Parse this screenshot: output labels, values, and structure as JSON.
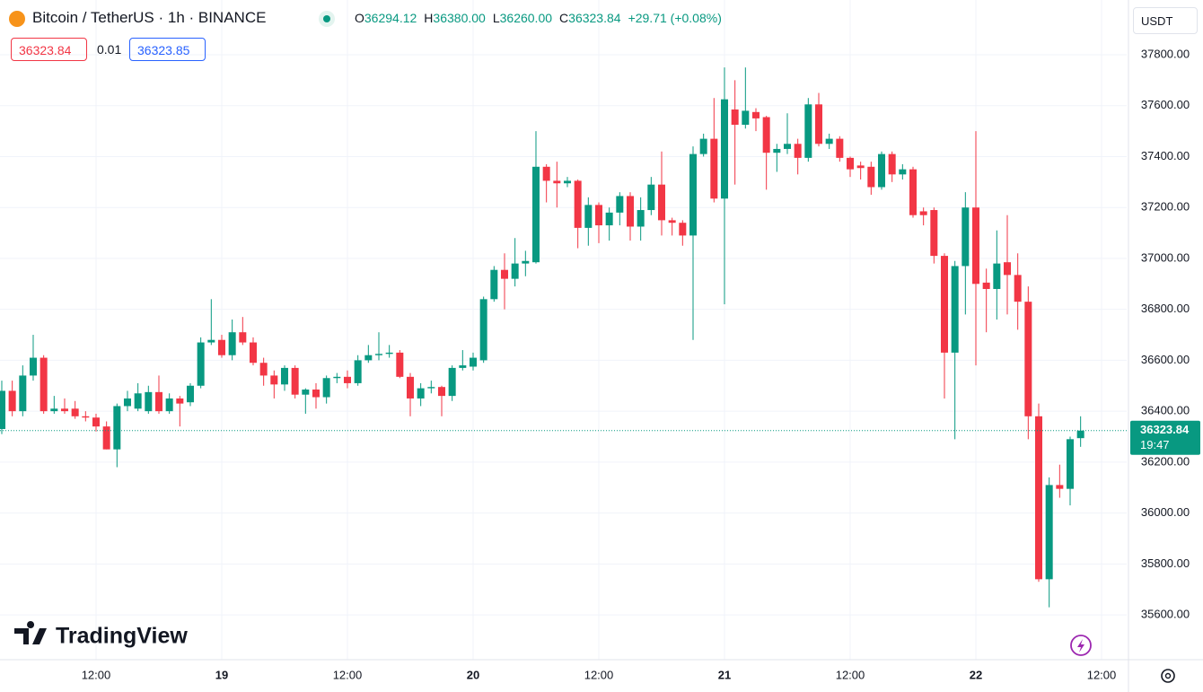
{
  "chart_data": {
    "type": "candlestick",
    "title": "Bitcoin / TetherUS · 1h · BINANCE",
    "readout": [
      {
        "key": "O",
        "value": "36294.12"
      },
      {
        "key": "H",
        "value": "36380.00"
      },
      {
        "key": "L",
        "value": "36260.00"
      },
      {
        "key": "C",
        "value": "36323.84"
      }
    ],
    "change": "+29.71 (+0.08%)",
    "bid": "36323.84",
    "spread": "0.01",
    "ask": "36323.85",
    "currency": "USDT",
    "last_price": 36323.84,
    "countdown": "19:47",
    "brand": "TradingView",
    "up_color": "#089981",
    "down_color": "#f23645",
    "grid": true,
    "ylim": [
      35424,
      38015
    ],
    "yticks": [
      {
        "value": 35600,
        "label": "35600.00"
      },
      {
        "value": 35800,
        "label": "35800.00"
      },
      {
        "value": 36000,
        "label": "36000.00"
      },
      {
        "value": 36200,
        "label": "36200.00"
      },
      {
        "value": 36400,
        "label": "36400.00"
      },
      {
        "value": 36600,
        "label": "36600.00"
      },
      {
        "value": 36800,
        "label": "36800.00"
      },
      {
        "value": 37000,
        "label": "37000.00"
      },
      {
        "value": 37200,
        "label": "37200.00"
      },
      {
        "value": 37400,
        "label": "37400.00"
      },
      {
        "value": 37600,
        "label": "37600.00"
      },
      {
        "value": 37800,
        "label": "37800.00"
      }
    ],
    "xlim": [
      -0.17,
      107.4
    ],
    "xticks": [
      {
        "value": 9,
        "label": "12:00"
      },
      {
        "value": 21,
        "label": "19"
      },
      {
        "value": 33,
        "label": "12:00"
      },
      {
        "value": 45,
        "label": "20"
      },
      {
        "value": 57,
        "label": "12:00"
      },
      {
        "value": 69,
        "label": "21"
      },
      {
        "value": 81,
        "label": "12:00"
      },
      {
        "value": 93,
        "label": "22"
      },
      {
        "value": 105,
        "label": "12:00"
      }
    ],
    "open": [
      36330,
      36480,
      36400,
      36540,
      36610,
      36400,
      36410,
      36410,
      36380,
      36375,
      36340,
      36250,
      36420,
      36410,
      36400,
      36475,
      36400,
      36450,
      36435,
      36500,
      36670,
      36680,
      36620,
      36710,
      36670,
      36590,
      36540,
      36505,
      36570,
      36465,
      36485,
      36455,
      36530,
      36535,
      36510,
      36600,
      36620,
      36625,
      36630,
      36535,
      36450,
      36490,
      36495,
      36460,
      36570,
      36575,
      36600,
      36840,
      36955,
      36920,
      36980,
      36985,
      37360,
      37305,
      37295,
      37305,
      37120,
      37210,
      37130,
      37180,
      37245,
      37125,
      37190,
      37290,
      37150,
      37140,
      37090,
      37410,
      37470,
      37235,
      37585,
      37525,
      37575,
      37555,
      37415,
      37430,
      37450,
      37395,
      37605,
      37450,
      37470,
      37395,
      37365,
      37360,
      37280,
      37410,
      37330,
      37350,
      37185,
      37190,
      37010,
      36630,
      36970,
      37200,
      36905,
      36880,
      36985,
      36935,
      36830,
      36380,
      35740,
      36110,
      36095,
      36294.12
    ],
    "high": [
      36520,
      36520,
      36580,
      36700,
      36620,
      36460,
      36450,
      36440,
      36400,
      36390,
      36360,
      36430,
      36480,
      36510,
      36500,
      36540,
      36470,
      36460,
      36510,
      36690,
      36840,
      36700,
      36760,
      36770,
      36690,
      36610,
      36560,
      36580,
      36580,
      36490,
      36510,
      36540,
      36550,
      36560,
      36620,
      36660,
      36710,
      36660,
      36640,
      36550,
      36510,
      36520,
      36500,
      36580,
      36640,
      36630,
      36850,
      36970,
      37020,
      37080,
      37030,
      37500,
      37370,
      37380,
      37320,
      37310,
      37240,
      37220,
      37200,
      37260,
      37260,
      37240,
      37320,
      37420,
      37160,
      37150,
      37440,
      37490,
      37630,
      37750,
      37700,
      37750,
      37590,
      37560,
      37450,
      37570,
      37470,
      37630,
      37650,
      37490,
      37480,
      37400,
      37380,
      37380,
      37420,
      37420,
      37370,
      37360,
      37200,
      37200,
      37020,
      36990,
      37260,
      37500,
      36960,
      37110,
      37170,
      37020,
      36890,
      36430,
      36140,
      36190,
      36300,
      36380
    ],
    "low": [
      36310,
      36380,
      36380,
      36520,
      36390,
      36390,
      36390,
      36370,
      36360,
      36320,
      36250,
      36180,
      36400,
      36400,
      36390,
      36390,
      36390,
      36340,
      36420,
      36490,
      36660,
      36610,
      36600,
      36660,
      36580,
      36500,
      36450,
      36480,
      36450,
      36390,
      36410,
      36430,
      36510,
      36490,
      36500,
      36590,
      36600,
      36610,
      36530,
      36380,
      36420,
      36470,
      36380,
      36440,
      36560,
      36560,
      36590,
      36830,
      36800,
      36890,
      36930,
      36980,
      37220,
      37200,
      37280,
      37040,
      37050,
      37060,
      37070,
      37130,
      37070,
      37070,
      37170,
      37090,
      37090,
      37050,
      36680,
      37400,
      37220,
      36820,
      37290,
      37510,
      37500,
      37270,
      37340,
      37410,
      37330,
      37380,
      37440,
      37430,
      37380,
      37320,
      37310,
      37250,
      37270,
      37300,
      37310,
      37160,
      37130,
      36980,
      36450,
      36290,
      36780,
      36580,
      36710,
      36760,
      36780,
      36720,
      36290,
      35730,
      35630,
      36060,
      36030,
      36260
    ],
    "close": [
      36480,
      36400,
      36540,
      36610,
      36400,
      36410,
      36400,
      36380,
      36375,
      36340,
      36250,
      36420,
      36450,
      36470,
      36475,
      36400,
      36450,
      36430,
      36500,
      36670,
      36680,
      36620,
      36710,
      36670,
      36590,
      36540,
      36505,
      36570,
      36465,
      36485,
      36455,
      36530,
      36535,
      36510,
      36600,
      36620,
      36625,
      36630,
      36535,
      36450,
      36490,
      36495,
      36460,
      36570,
      36580,
      36610,
      36840,
      36955,
      36920,
      36980,
      36990,
      37360,
      37305,
      37295,
      37305,
      37120,
      37210,
      37130,
      37180,
      37245,
      37125,
      37190,
      37290,
      37150,
      37140,
      37090,
      37410,
      37470,
      37235,
      37625,
      37525,
      37580,
      37550,
      37415,
      37430,
      37450,
      37395,
      37605,
      37450,
      37470,
      37395,
      37350,
      37355,
      37280,
      37410,
      37330,
      37350,
      37170,
      37170,
      37010,
      36630,
      36970,
      37200,
      36900,
      36880,
      36980,
      36935,
      36830,
      36380,
      35740,
      36110,
      36095,
      36290,
      36323.84
    ]
  }
}
